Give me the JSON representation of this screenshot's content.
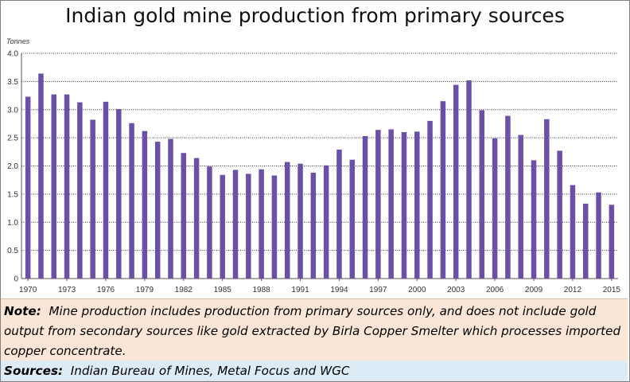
{
  "title": "Indian gold mine production from primary sources",
  "note": {
    "label": "Note:",
    "text": "Mine production includes production from primary sources only, and does not include gold output from secondary sources like gold extracted by Birla Copper Smelter which processes imported copper concentrate."
  },
  "sources": {
    "label": "Sources:",
    "text": "Indian Bureau of Mines, Metal Focus and WGC"
  },
  "colors": {
    "bar": "#6a50a7",
    "grid": "#333333",
    "axis": "#555555"
  },
  "chart_data": {
    "type": "bar",
    "ylabel": "Tonnes",
    "ylim": [
      0,
      4.0
    ],
    "yticks": [
      "0",
      "0.5",
      "1.0",
      "1.5",
      "2.0",
      "2.5",
      "3.0",
      "3.5",
      "4.0"
    ],
    "xtick_labels": [
      "1970",
      "1973",
      "1976",
      "1979",
      "1982",
      "1985",
      "1988",
      "1991",
      "1994",
      "1997",
      "2000",
      "2003",
      "2006",
      "2009",
      "2012",
      "2015"
    ],
    "grid": true,
    "categories": [
      "1970",
      "1971",
      "1972",
      "1973",
      "1974",
      "1975",
      "1976",
      "1977",
      "1978",
      "1979",
      "1980",
      "1981",
      "1982",
      "1983",
      "1984",
      "1985",
      "1986",
      "1987",
      "1988",
      "1989",
      "1990",
      "1991",
      "1992",
      "1993",
      "1994",
      "1995",
      "1996",
      "1997",
      "1998",
      "1999",
      "2000",
      "2001",
      "2002",
      "2003",
      "2004",
      "2005",
      "2006",
      "2007",
      "2008",
      "2009",
      "2010",
      "2011",
      "2012",
      "2013",
      "2014",
      "2015"
    ],
    "values": [
      3.23,
      3.64,
      3.27,
      3.27,
      3.13,
      2.82,
      3.14,
      3.01,
      2.76,
      2.62,
      2.43,
      2.48,
      2.23,
      2.14,
      1.99,
      1.84,
      1.93,
      1.86,
      1.94,
      1.83,
      2.07,
      2.04,
      1.88,
      2.01,
      2.29,
      2.11,
      2.53,
      2.64,
      2.65,
      2.6,
      2.61,
      2.8,
      3.15,
      3.44,
      3.52,
      2.99,
      2.49,
      2.89,
      2.55,
      2.1,
      2.83,
      2.27,
      1.66,
      1.33,
      1.53,
      1.31
    ]
  }
}
